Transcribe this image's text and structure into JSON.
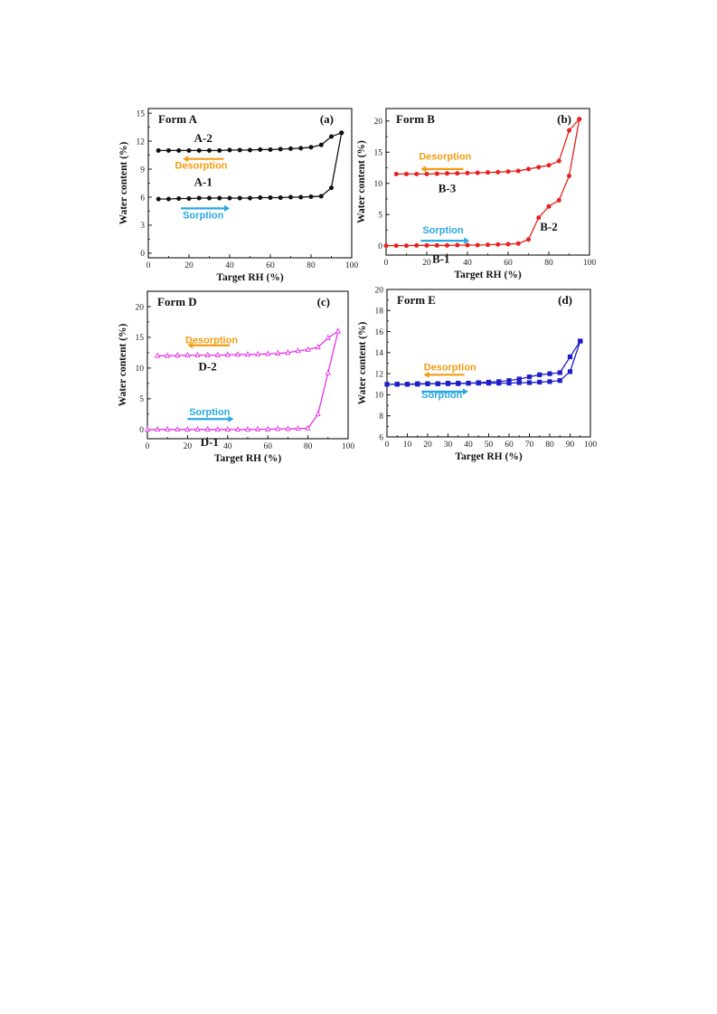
{
  "chart_data": [
    {
      "type": "line",
      "panel_label": "(a)",
      "title": "Form A",
      "xlabel": "Target RH (%)",
      "ylabel": "Water content (%)",
      "xlim": [
        0,
        100
      ],
      "ylim": [
        -0.5,
        15.5
      ],
      "xticks": [
        0,
        20,
        40,
        60,
        80,
        100
      ],
      "yticks": [
        0,
        3,
        6,
        9,
        12,
        15
      ],
      "minor_x": 10,
      "minor_y": 1.5,
      "color": "#111111",
      "marker": "circle",
      "series": [
        {
          "name": "A-1",
          "x": [
            5,
            10,
            15,
            20,
            25,
            30,
            35,
            40,
            45,
            50,
            55,
            60,
            65,
            70,
            75,
            80,
            85,
            90,
            95
          ],
          "y": [
            5.8,
            5.8,
            5.85,
            5.85,
            5.9,
            5.9,
            5.9,
            5.9,
            5.9,
            5.9,
            5.95,
            5.95,
            5.95,
            6.0,
            6.0,
            6.05,
            6.1,
            7.0,
            12.9
          ]
        },
        {
          "name": "A-2",
          "x": [
            95,
            90,
            85,
            80,
            75,
            70,
            65,
            60,
            55,
            50,
            45,
            40,
            35,
            30,
            25,
            20,
            15,
            10,
            5
          ],
          "y": [
            12.9,
            12.5,
            11.6,
            11.35,
            11.25,
            11.2,
            11.15,
            11.1,
            11.1,
            11.05,
            11.05,
            11.05,
            11.0,
            11.0,
            11.0,
            11.0,
            11.0,
            11.0,
            11.0
          ]
        }
      ],
      "curve_labels": [
        {
          "text": "A-2",
          "x": 27,
          "y": 11.9
        },
        {
          "text": "A-1",
          "x": 27,
          "y": 7.2
        }
      ],
      "annotations": [
        {
          "text": "Desorption",
          "x": 26,
          "y": 9.05,
          "color": "#f39c12",
          "arrow": {
            "x1": 37,
            "x2": 17,
            "y": 10.1
          }
        },
        {
          "text": "Sorption",
          "x": 27,
          "y": 3.7,
          "color": "#29a9e1",
          "arrow": {
            "x1": 16,
            "x2": 40,
            "y": 4.8
          }
        }
      ]
    },
    {
      "type": "line",
      "panel_label": "(b)",
      "title": "Form B",
      "xlabel": "Target RH (%)",
      "ylabel": "Water content (%)",
      "xlim": [
        0,
        100
      ],
      "ylim": [
        -1.5,
        22
      ],
      "xticks": [
        0,
        20,
        40,
        60,
        80,
        100
      ],
      "yticks": [
        0,
        5,
        10,
        15,
        20
      ],
      "minor_x": 10,
      "minor_y": 2.5,
      "color": "#e8211d",
      "marker": "circle",
      "series": [
        {
          "name": "B-1",
          "x": [
            0,
            5,
            10,
            15,
            20,
            25,
            30,
            35,
            40,
            45,
            50,
            55,
            60,
            65,
            70,
            75,
            80,
            85,
            90,
            95
          ],
          "y": [
            0,
            0,
            0,
            0.05,
            0.05,
            0.05,
            0.05,
            0.1,
            0.1,
            0.1,
            0.15,
            0.2,
            0.25,
            0.35,
            1.0,
            4.5,
            6.3,
            7.3,
            11.2,
            20.3
          ]
        },
        {
          "name": "B-3",
          "x": [
            95,
            90,
            85,
            80,
            75,
            70,
            65,
            60,
            55,
            50,
            45,
            40,
            35,
            30,
            25,
            20,
            15,
            10,
            5
          ],
          "y": [
            20.3,
            18.5,
            13.6,
            12.9,
            12.6,
            12.3,
            12.0,
            11.9,
            11.8,
            11.75,
            11.7,
            11.65,
            11.6,
            11.6,
            11.55,
            11.5,
            11.5,
            11.5,
            11.5
          ]
        }
      ],
      "curve_labels": [
        {
          "text": "B-3",
          "x": 30,
          "y": 8.6
        },
        {
          "text": "B-2",
          "x": 80,
          "y": 2.4
        },
        {
          "text": "B-1",
          "x": 27,
          "y": -2.7
        }
      ],
      "annotations": [
        {
          "text": "Desorption",
          "x": 29,
          "y": 13.8,
          "color": "#f39c12",
          "arrow": {
            "x1": 38,
            "x2": 17,
            "y": 12.3
          }
        },
        {
          "text": "Sorption",
          "x": 28,
          "y": 2.0,
          "color": "#29a9e1",
          "arrow": {
            "x1": 17,
            "x2": 41,
            "y": 0.8
          }
        }
      ]
    },
    {
      "type": "line",
      "panel_label": "(c)",
      "title": "Form D",
      "xlabel": "Target RH (%)",
      "ylabel": "Water content (%)",
      "xlim": [
        0,
        100
      ],
      "ylim": [
        -1.5,
        22.5
      ],
      "xticks": [
        0,
        20,
        40,
        60,
        80,
        100
      ],
      "yticks": [
        0,
        5,
        10,
        15,
        20
      ],
      "minor_x": 10,
      "minor_y": 2.5,
      "color": "#e633e6",
      "marker": "triangle",
      "series": [
        {
          "name": "D-1",
          "x": [
            0,
            5,
            10,
            15,
            20,
            25,
            30,
            35,
            40,
            45,
            50,
            55,
            60,
            65,
            70,
            75,
            80,
            85,
            90,
            95
          ],
          "y": [
            0,
            0,
            0,
            0,
            0,
            0,
            0,
            0,
            0,
            0,
            0,
            0.05,
            0.05,
            0.1,
            0.1,
            0.15,
            0.2,
            2.5,
            9.2,
            16.0
          ]
        },
        {
          "name": "D-2",
          "x": [
            95,
            90,
            85,
            80,
            75,
            70,
            65,
            60,
            55,
            50,
            45,
            40,
            35,
            30,
            25,
            20,
            15,
            10,
            5
          ],
          "y": [
            16.0,
            14.9,
            13.4,
            13.0,
            12.8,
            12.5,
            12.4,
            12.3,
            12.25,
            12.2,
            12.2,
            12.15,
            12.1,
            12.1,
            12.1,
            12.1,
            12.05,
            12.0,
            12.0
          ]
        }
      ],
      "curve_labels": [
        {
          "text": "D-2",
          "x": 30,
          "y": 9.6
        },
        {
          "text": "D-1",
          "x": 31,
          "y": -2.7
        }
      ],
      "annotations": [
        {
          "text": "Desorption",
          "x": 32,
          "y": 14.0,
          "color": "#f39c12",
          "arrow": {
            "x1": 41,
            "x2": 20,
            "y": 13.7
          }
        },
        {
          "text": "Sorption",
          "x": 31,
          "y": 2.3,
          "color": "#29a9e1",
          "arrow": {
            "x1": 20,
            "x2": 43,
            "y": 1.7
          }
        }
      ]
    },
    {
      "type": "line",
      "panel_label": "(d)",
      "title": "Form E",
      "xlabel": "Target RH (%)",
      "ylabel": "Water content (%)",
      "xlim": [
        0,
        100
      ],
      "ylim": [
        6,
        20
      ],
      "xticks": [
        0,
        10,
        20,
        30,
        40,
        50,
        60,
        70,
        80,
        90,
        100
      ],
      "yticks": [
        6,
        8,
        10,
        12,
        14,
        16,
        18,
        20
      ],
      "minor_x": 5,
      "minor_y": 1,
      "color": "#1e1ec8",
      "marker": "square",
      "series": [
        {
          "name": "",
          "x": [
            0,
            5,
            10,
            15,
            20,
            25,
            30,
            35,
            40,
            45,
            50,
            55,
            60,
            65,
            70,
            75,
            80,
            85,
            90,
            95
          ],
          "y": [
            11.0,
            11.0,
            11.0,
            11.05,
            11.05,
            11.05,
            11.05,
            11.05,
            11.1,
            11.1,
            11.1,
            11.1,
            11.1,
            11.15,
            11.15,
            11.2,
            11.25,
            11.35,
            12.2,
            15.1
          ]
        },
        {
          "name": "",
          "x": [
            95,
            90,
            85,
            80,
            75,
            70,
            65,
            60,
            55,
            50,
            45,
            40,
            35,
            30,
            25,
            20,
            15,
            10,
            5
          ],
          "y": [
            15.1,
            13.6,
            12.1,
            12.0,
            11.9,
            11.7,
            11.5,
            11.35,
            11.25,
            11.2,
            11.15,
            11.1,
            11.1,
            11.1,
            11.05,
            11.05,
            11.0,
            11.0,
            11.0
          ]
        }
      ],
      "curve_labels": [],
      "annotations": [
        {
          "text": "Desorption",
          "x": 31,
          "y": 12.3,
          "color": "#f39c12",
          "arrow": {
            "x1": 38,
            "x2": 18,
            "y": 11.9
          }
        },
        {
          "text": "Sorption",
          "x": 27,
          "y": 9.7,
          "color": "#29a9e1",
          "arrow": {
            "x1": 17,
            "x2": 40,
            "y": 10.3
          }
        }
      ]
    }
  ]
}
